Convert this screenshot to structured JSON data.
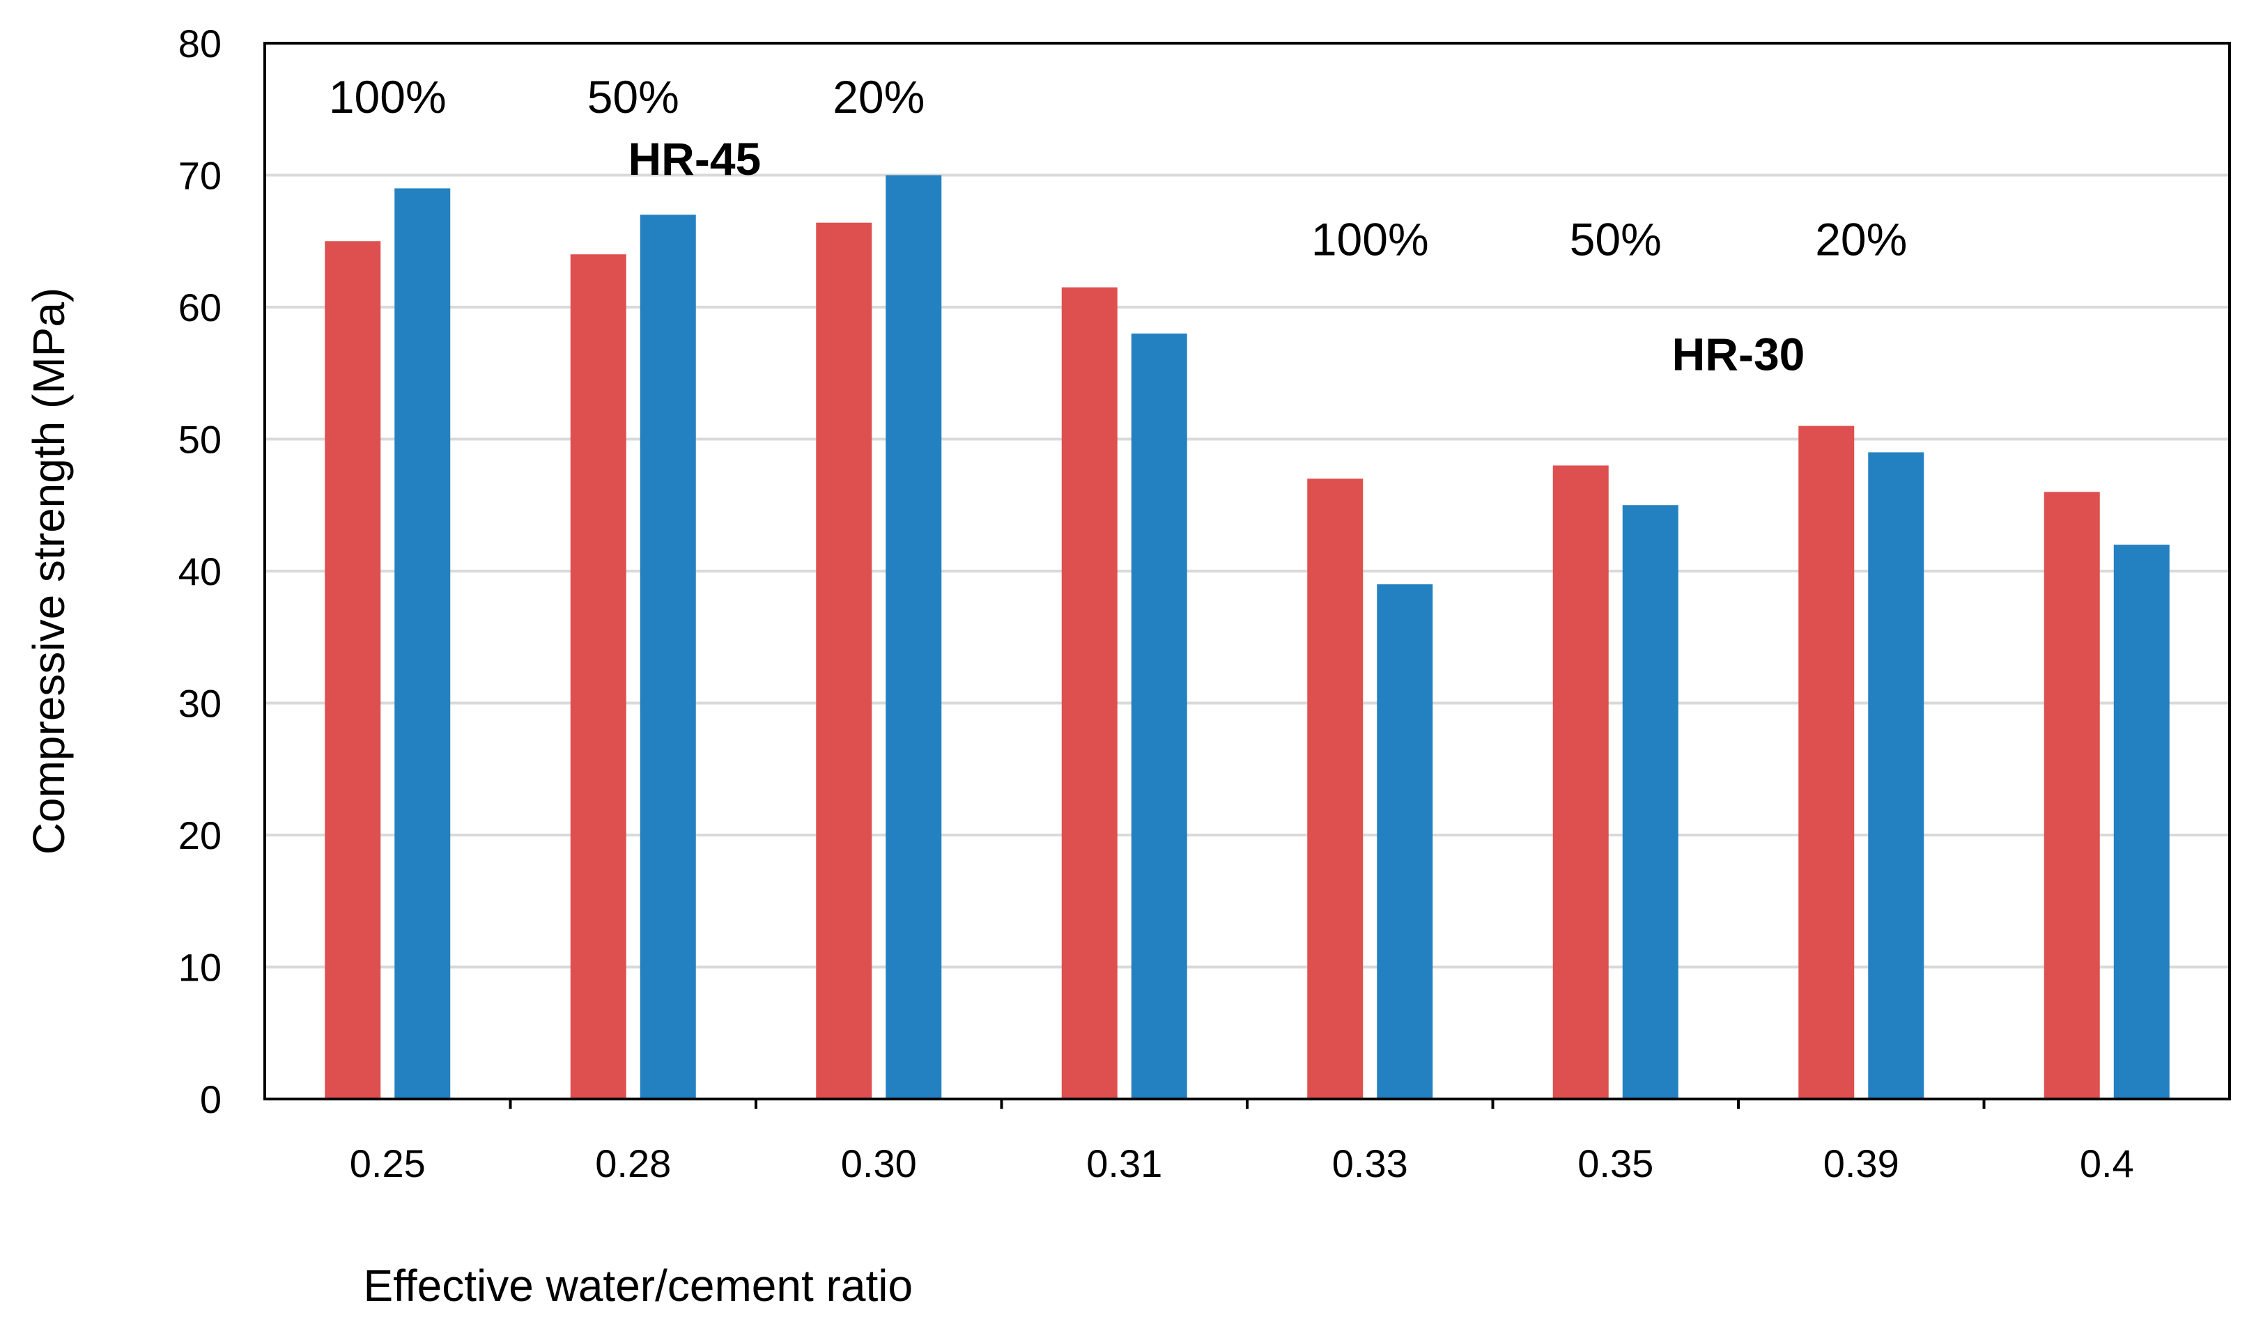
{
  "chart_data": {
    "type": "bar",
    "title": "",
    "xlabel": "Effective water/cement ratio",
    "ylabel": "Compressive strength (MPa)",
    "ylim": [
      0,
      80
    ],
    "yticks": [
      0,
      10,
      20,
      30,
      40,
      50,
      60,
      70,
      80
    ],
    "grid": true,
    "categories": [
      "0.25",
      "0.28",
      "0.30",
      "0.31",
      "0.33",
      "0.35",
      "0.39",
      "0.4"
    ],
    "series": [
      {
        "name": "Series 1 (red)",
        "color": "#de504f",
        "values": [
          65,
          64,
          66.4,
          61.5,
          47,
          48,
          51,
          46
        ]
      },
      {
        "name": "Series 2 (blue)",
        "color": "#2481c1",
        "values": [
          69,
          67,
          70,
          58,
          39,
          45,
          49,
          42
        ]
      }
    ],
    "annotations": [
      {
        "text": "100%",
        "near_category": "0.25",
        "y": 76,
        "bold": false
      },
      {
        "text": "50%",
        "near_category": "0.28",
        "y": 76,
        "bold": false
      },
      {
        "text": "20%",
        "near_category": "0.30",
        "y": 76,
        "bold": false
      },
      {
        "text": "HR-45",
        "near_category": "0.28",
        "y": 71.3,
        "offset": 0.25,
        "bold": true
      },
      {
        "text": "100%",
        "near_category": "0.33",
        "y": 65.2,
        "bold": false
      },
      {
        "text": "50%",
        "near_category": "0.35",
        "y": 65.2,
        "bold": false
      },
      {
        "text": "20%",
        "near_category": "0.39",
        "y": 65.2,
        "bold": false
      },
      {
        "text": "HR-30",
        "near_category": "0.35",
        "y": 56.5,
        "offset": 0.5,
        "bold": true
      }
    ]
  }
}
